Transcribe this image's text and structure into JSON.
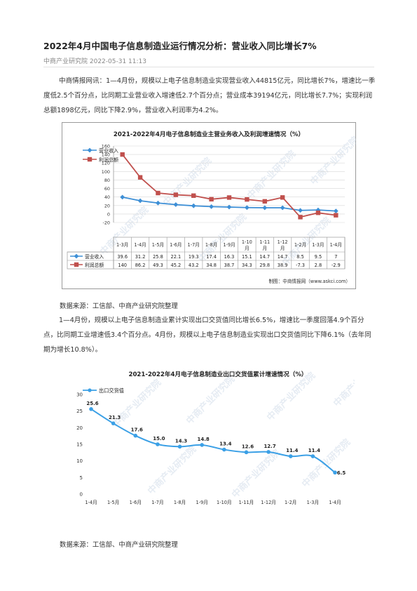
{
  "article": {
    "title": "2022年4月中国电子信息制造业运行情况分析：营业收入同比增长7%",
    "source_line": "中商产业研究院 2022-05-31 11:13",
    "paragraph1": "中商情报网讯：1—4月份，规模以上电子信息制造业实现营业收入44815亿元，同比增长7%，增速比一季度低2.5个百分点，比同期工业营业收入增速低2.7个百分点；营业成本39194亿元，同比增长7.7%；实现利润总额1898亿元，同比下降2.9%，营业收入利润率为4.2%。",
    "source_note1": "数据来源：工信部、中商产业研究院整理",
    "paragraph2": "1—4月份，规模以上电子信息制造业累计实现出口交货值同比增长6.5%，增速比一季度回落4.9个百分点，比同期工业增速低3.4个百分点。4月份，规模以上电子信息制造业实现出口交货值同比下降6.1%（去年同期为增长10.8%）。",
    "source_note2": "数据来源：工信部、中商产业研究院整理"
  },
  "watermark": "中商产业研究院",
  "chart_data": [
    {
      "type": "line",
      "title": "2021-2022年4月电子信息制造业主营业务收入及利润增速情况（%）",
      "categories": [
        "1-3月",
        "1-4月",
        "1-5月",
        "1-6月",
        "1-7月",
        "1-8月",
        "1-9月",
        "1-10月",
        "1-11月",
        "1-12月",
        "1-2月",
        "1-3月",
        "1-4月"
      ],
      "series": [
        {
          "name": "营业收入",
          "values": [
            39.6,
            31.2,
            25.8,
            22.1,
            19.3,
            17.4,
            16.3,
            15.1,
            14.7,
            14.7,
            8.5,
            9.5,
            7
          ],
          "labels": [
            "39.6",
            "31.2",
            "25.8",
            "22.1",
            "19.3",
            "17.4",
            "16.3",
            "15.1",
            "14.7",
            "14.7",
            "8.5",
            "9.5",
            "7"
          ],
          "color": "#3d8fd6",
          "marker": "diamond"
        },
        {
          "name": "利润总额",
          "values": [
            140,
            86.2,
            49.3,
            45.2,
            43.2,
            34.8,
            38.7,
            34.3,
            29.8,
            38.9,
            -7.3,
            2.8,
            -2.9
          ],
          "labels": [
            "140",
            "86.2",
            "49.3",
            "45.2",
            "43.2",
            "34.8",
            "38.7",
            "34.3",
            "29.8",
            "38.9",
            "-7.3",
            "2.8",
            "-2.9"
          ],
          "color": "#c0504d",
          "marker": "square"
        }
      ],
      "ylim": [
        -20,
        160
      ],
      "yticks": [
        "-20",
        "0",
        "20",
        "40",
        "60",
        "80",
        "100",
        "120",
        "140",
        "160"
      ],
      "grid": true,
      "legend": "top-left",
      "data_table": true,
      "credit": "制图：中商情报网（www.askci.com）"
    },
    {
      "type": "line",
      "title": "2021-2022年4月电子信息制造业出口交货值累计增速情况（%）",
      "categories": [
        "1-4月",
        "1-5月",
        "1-6月",
        "1-7月",
        "1-8月",
        "1-9月",
        "1-10月",
        "1-11月",
        "1-12月",
        "1-2月",
        "1-3月",
        "1-4月"
      ],
      "series": [
        {
          "name": "出口交货值",
          "values": [
            25.6,
            21.3,
            17.6,
            15.0,
            14.3,
            14.8,
            13.4,
            12.6,
            12.7,
            11.4,
            11.4,
            6.5
          ],
          "labels": [
            "25.6",
            "21.3",
            "17.6",
            "15.0",
            "14.3",
            "14.8",
            "13.4",
            "12.6",
            "12.7",
            "11.4",
            "11.4",
            "6.5"
          ],
          "color": "#3ba0e6"
        }
      ],
      "ylim": [
        0,
        30
      ],
      "yticks": [
        "0",
        "5",
        "10",
        "15",
        "20",
        "25",
        "30"
      ],
      "grid": false,
      "legend": "top-left"
    }
  ]
}
